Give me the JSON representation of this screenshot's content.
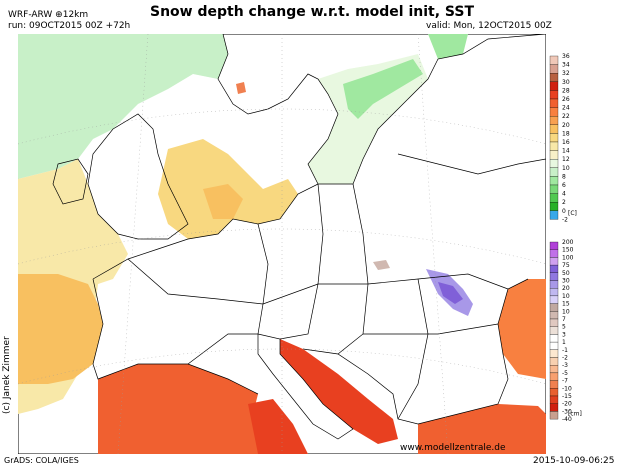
{
  "header": {
    "title": "Snow depth change w.r.t. model init, SST",
    "model": "WRF-ARW ⊕12km",
    "run": "run: 09OCT2015 00Z +72h",
    "valid": "valid: Mon, 12OCT2015 00Z"
  },
  "footer": {
    "credit": "(c) Janek Zimmer",
    "website": "www.modellzentrale.de",
    "grads": "GrADS: COLA/IGES",
    "timestamp": "2015-10-09-06:25"
  },
  "legend_sst": {
    "unit": "[C]",
    "levels": [
      "36",
      "34",
      "32",
      "30",
      "28",
      "26",
      "24",
      "22",
      "20",
      "18",
      "16",
      "14",
      "12",
      "10",
      "8",
      "6",
      "4",
      "2",
      "0",
      "-2"
    ],
    "colors": [
      "#f0c8b8",
      "#d8a090",
      "#b86040",
      "#d02010",
      "#e84020",
      "#f06030",
      "#f88040",
      "#f8a050",
      "#f8c060",
      "#f8d880",
      "#f8e8a8",
      "#f8f0c8",
      "#e8f8e0",
      "#c8f0c8",
      "#a0e8a0",
      "#78d878",
      "#50c850",
      "#28b028",
      "#38a8e8"
    ]
  },
  "legend_snow": {
    "unit": "[cm]",
    "levels": [
      "200",
      "150",
      "100",
      "75",
      "50",
      "30",
      "20",
      "10",
      "15",
      "10",
      "7",
      "5",
      "3",
      "1",
      "-1",
      "-2",
      "-3",
      "-5",
      "-7",
      "-10",
      "-15",
      "-20",
      "-30",
      "-40"
    ],
    "colors": [
      "#b040d8",
      "#c070e8",
      "#d0a0f0",
      "#8060d8",
      "#9078e0",
      "#a898e8",
      "#c0b8f0",
      "#d8d0f8",
      "#c0a8a0",
      "#d0b8b0",
      "#e0c8c0",
      "#ece0d8",
      "#ffffff",
      "#ffffff",
      "#fde8d0",
      "#f8d0b0",
      "#f8b890",
      "#f8a070",
      "#f08050",
      "#e86030",
      "#e04020",
      "#d02010",
      "#c8a090"
    ]
  }
}
